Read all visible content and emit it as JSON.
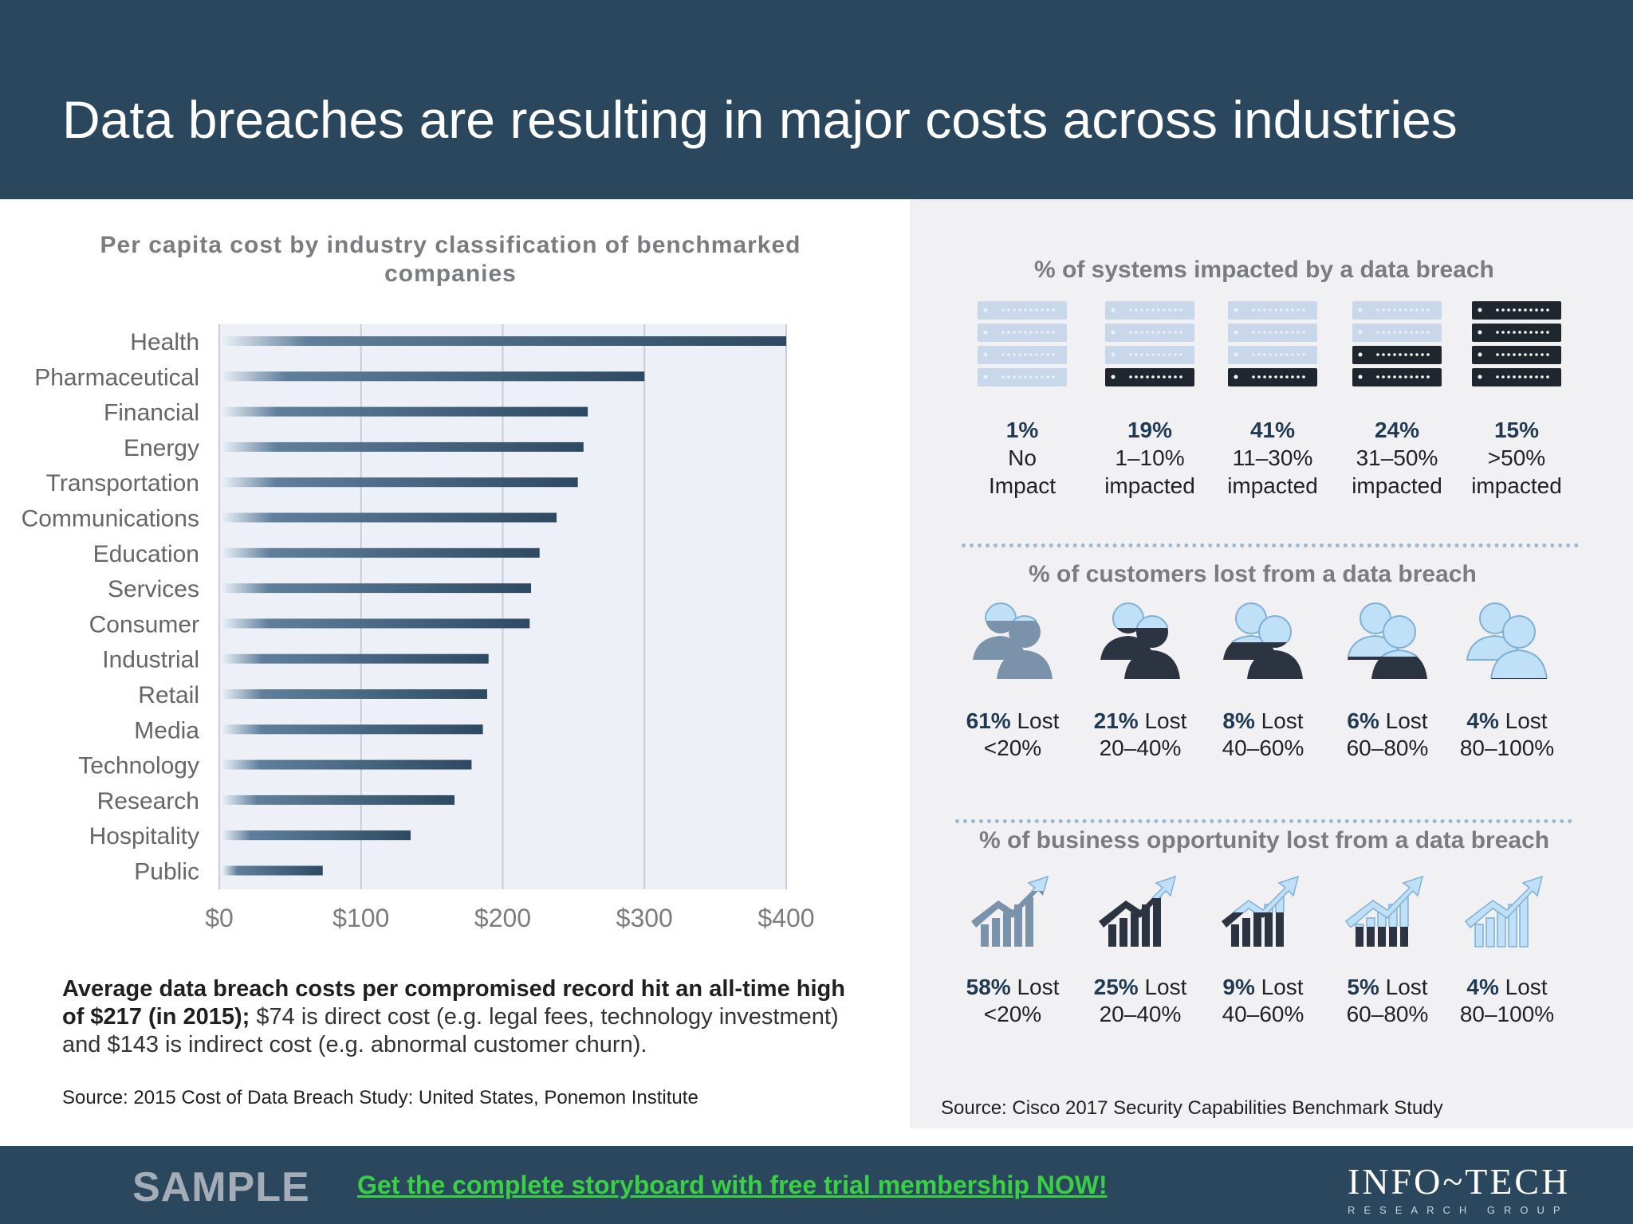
{
  "header": {
    "title": "Data breaches are resulting in major costs across industries"
  },
  "chart_data": {
    "type": "bar",
    "orientation": "horizontal",
    "title": "Per capita cost by industry classification of benchmarked companies",
    "categories": [
      "Health",
      "Pharmaceutical",
      "Financial",
      "Energy",
      "Transportation",
      "Communications",
      "Education",
      "Services",
      "Consumer",
      "Industrial",
      "Retail",
      "Media",
      "Technology",
      "Research",
      "Hospitality",
      "Public"
    ],
    "values": [
      400,
      300,
      260,
      257,
      253,
      238,
      226,
      220,
      219,
      190,
      189,
      186,
      178,
      166,
      135,
      73
    ],
    "x_ticks": [
      "$0",
      "$100",
      "$200",
      "$300",
      "$400"
    ],
    "xlim": [
      0,
      400
    ],
    "grid": true
  },
  "summary": {
    "bold": "Average data breach costs per compromised record hit an all-time high of $217 (in 2015);",
    "rest": " $74 is direct cost (e.g. legal fees, technology investment) and $143 is indirect cost (e.g. abnormal customer churn)."
  },
  "source_left": "Source: 2015 Cost of Data Breach Study: United States, Ponemon Institute",
  "systems": {
    "title": "% of systems impacted by a data breach",
    "items": [
      {
        "pct": "1%",
        "line1": "No",
        "line2": "Impact",
        "filled": 0
      },
      {
        "pct": "19%",
        "line1": "1–10%",
        "line2": "impacted",
        "filled": 1
      },
      {
        "pct": "41%",
        "line1": "11–30%",
        "line2": "impacted",
        "filled": 1
      },
      {
        "pct": "24%",
        "line1": "31–50%",
        "line2": "impacted",
        "filled": 2
      },
      {
        "pct": "15%",
        "line1": ">50%",
        "line2": "impacted",
        "filled": 4
      }
    ]
  },
  "customers": {
    "title": "% of customers lost from a data breach",
    "items": [
      {
        "pct": "61%",
        "line1": " Lost",
        "line2": "<20%",
        "fill": 0.8
      },
      {
        "pct": "21%",
        "line1": " Lost",
        "line2": "20–40%",
        "fill": 0.7
      },
      {
        "pct": "8%",
        "line1": " Lost",
        "line2": "40–60%",
        "fill": 0.5
      },
      {
        "pct": "6%",
        "line1": " Lost",
        "line2": "60–80%",
        "fill": 0.3
      },
      {
        "pct": "4%",
        "line1": " Lost",
        "line2": "80–100%",
        "fill": 0.0
      }
    ]
  },
  "opportunity": {
    "title": "% of business opportunity lost from a data breach",
    "items": [
      {
        "pct": "58%",
        "line1": " Lost",
        "line2": "<20%",
        "fill": 0.8
      },
      {
        "pct": "25%",
        "line1": " Lost",
        "line2": "20–40%",
        "fill": 0.7
      },
      {
        "pct": "9%",
        "line1": " Lost",
        "line2": "40–60%",
        "fill": 0.5
      },
      {
        "pct": "5%",
        "line1": " Lost",
        "line2": "60–80%",
        "fill": 0.3
      },
      {
        "pct": "4%",
        "line1": " Lost",
        "line2": "80–100%",
        "fill": 0.0
      }
    ]
  },
  "source_right": "Source: Cisco 2017 Security Capabilities Benchmark Study",
  "footer": {
    "sample": "SAMPLE",
    "cta": "Get the complete storyboard with free trial membership NOW!",
    "logo_main": "INFO~TECH",
    "logo_sub": "RESEARCH GROUP"
  },
  "colors": {
    "header_bg": "#2a475e",
    "bar": "#2e4a62",
    "accent_light": "#bfe0f7",
    "dark": "#2b3440",
    "cta": "#39d043"
  },
  "icons": {
    "systems": "server-rack-icon",
    "customers": "two-people-icon",
    "opportunity": "growth-chart-arrow-icon"
  }
}
